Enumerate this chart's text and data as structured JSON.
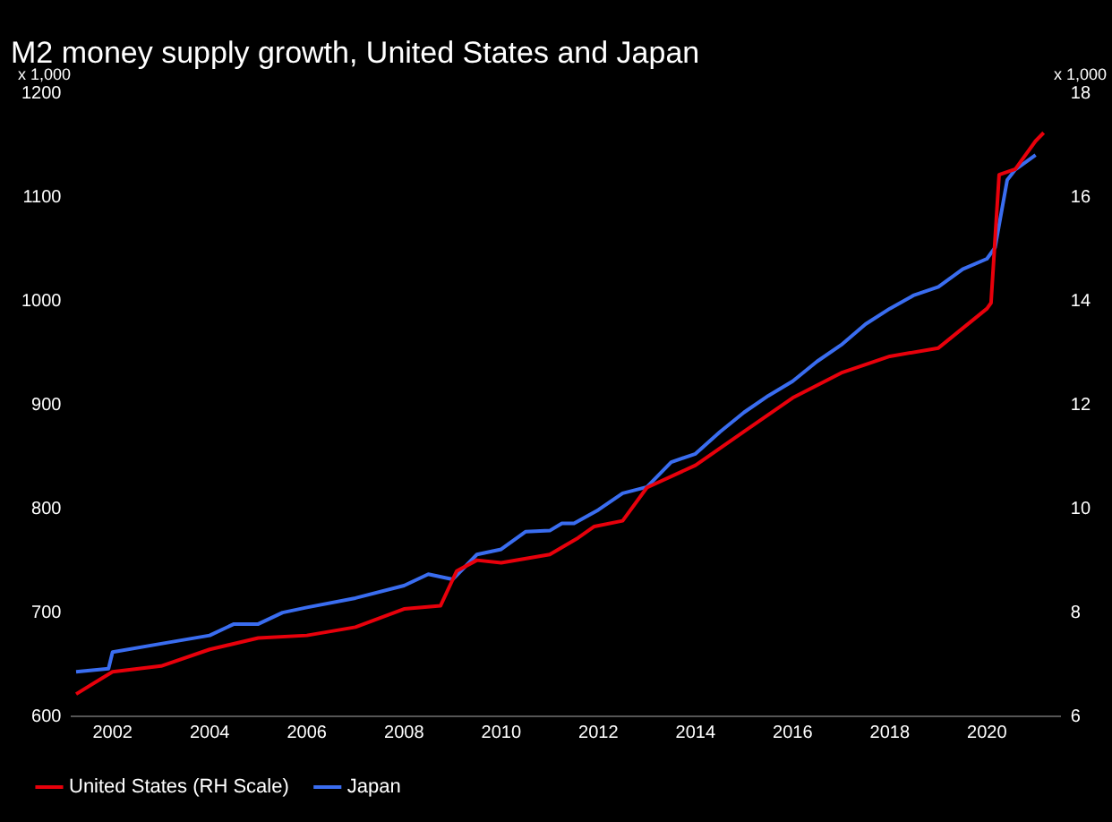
{
  "chart_data": {
    "type": "line",
    "title": "M2 money supply growth, United States and Japan",
    "ylabel": "x 1,000",
    "y2label": "x 1,000",
    "xlim": [
      "2001-03",
      "2021-07"
    ],
    "xticks": [
      "2002",
      "2004",
      "2006",
      "2008",
      "2010",
      "2012",
      "2014",
      "2016",
      "2018",
      "2020"
    ],
    "ylim": [
      600,
      1200
    ],
    "yticks": [
      600,
      700,
      800,
      900,
      1000,
      1100,
      1200
    ],
    "y2lim": [
      6,
      18
    ],
    "y2ticks": [
      6,
      8,
      10,
      12,
      14,
      16,
      18
    ],
    "grid": false,
    "legend": "bottom left",
    "marker": "none",
    "line_style": "solid",
    "series": [
      {
        "name": "United States (RH Scale)",
        "color": "#e8000b",
        "axis": "y2",
        "x": [
          "2001-04",
          "2002-01",
          "2003-01",
          "2004-01",
          "2005-01",
          "2006-01",
          "2007-01",
          "2008-01",
          "2008-10",
          "2009-02",
          "2009-07",
          "2010-01",
          "2011-01",
          "2011-08",
          "2011-12",
          "2012-07",
          "2013-01",
          "2014-01",
          "2015-01",
          "2016-01",
          "2017-01",
          "2018-01",
          "2019-01",
          "2019-07",
          "2020-01",
          "2020-02",
          "2020-04",
          "2020-08",
          "2021-01",
          "2021-03"
        ],
        "values": [
          6.43,
          6.86,
          6.97,
          7.29,
          7.51,
          7.56,
          7.72,
          8.07,
          8.13,
          8.8,
          9.01,
          8.96,
          9.12,
          9.44,
          9.66,
          9.77,
          10.41,
          10.84,
          11.49,
          12.14,
          12.62,
          12.94,
          13.1,
          13.48,
          13.86,
          13.97,
          16.44,
          16.55,
          17.09,
          17.25
        ]
      },
      {
        "name": "Japan",
        "color": "#3a6df0",
        "x": [
          "2001-04",
          "2001-12",
          "2002-01",
          "2003-01",
          "2004-01",
          "2004-07",
          "2005-01",
          "2005-07",
          "2006-01",
          "2007-01",
          "2008-01",
          "2008-07",
          "2009-01",
          "2009-07",
          "2010-01",
          "2010-07",
          "2011-01",
          "2011-04",
          "2011-07",
          "2012-01",
          "2012-07",
          "2013-01",
          "2013-07",
          "2014-01",
          "2014-07",
          "2015-01",
          "2015-07",
          "2016-01",
          "2016-07",
          "2017-01",
          "2017-07",
          "2018-01",
          "2018-07",
          "2019-01",
          "2019-07",
          "2020-01",
          "2020-03",
          "2020-06",
          "2020-08",
          "2021-01"
        ],
        "values": [
          643,
          646,
          662,
          670,
          678,
          689,
          689,
          700,
          705,
          714,
          726,
          737,
          732,
          756,
          761,
          778,
          779,
          786,
          786,
          799,
          815,
          821,
          845,
          853,
          874,
          893,
          909,
          923,
          942,
          958,
          978,
          993,
          1006,
          1014,
          1031,
          1041,
          1052,
          1117,
          1127,
          1141
        ]
      }
    ]
  }
}
